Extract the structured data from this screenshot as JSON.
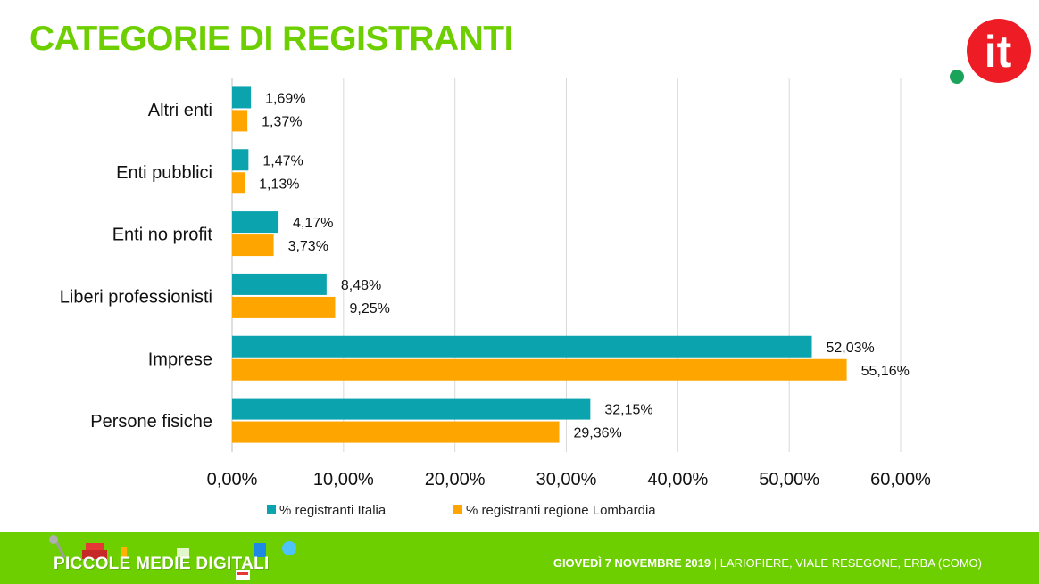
{
  "slide": {
    "title": "CATEGORIE DI REGISTRANTI",
    "logo_text": "it",
    "footer_brand": "PICCOLE MEDIE DIGITALI",
    "footer_date": "GIOVEDÌ 7 NOVEMBRE 2019",
    "footer_venue": " | LARIOFIERE, VIALE RESEGONE, ERBA (COMO)"
  },
  "colors": {
    "title": "#6dcf00",
    "footer_bg": "#6dcf00",
    "series_italia": "#0aa3ae",
    "series_lombardia": "#ffa500",
    "logo_red": "#ee1c24",
    "logo_dot": "#1aa35a",
    "grid": "#d9d9d9"
  },
  "chart_data": {
    "type": "bar",
    "orientation": "horizontal",
    "categories": [
      "Altri enti",
      "Enti pubblici",
      "Enti no profit",
      "Liberi professionisti",
      "Imprese",
      "Persone fisiche"
    ],
    "series": [
      {
        "name": "% registranti Italia",
        "values": [
          1.69,
          1.47,
          4.17,
          8.48,
          52.03,
          32.15
        ],
        "labels": [
          "1,69%",
          "1,47%",
          "4,17%",
          "8,48%",
          "52,03%",
          "32,15%"
        ]
      },
      {
        "name": "% registranti regione Lombardia",
        "values": [
          1.37,
          1.13,
          3.73,
          9.25,
          55.16,
          29.36
        ],
        "labels": [
          "1,37%",
          "1,13%",
          "3,73%",
          "9,25%",
          "55,16%",
          "29,36%"
        ]
      }
    ],
    "x_ticks": [
      {
        "value": 0,
        "label": "0,00%"
      },
      {
        "value": 10,
        "label": "10,00%"
      },
      {
        "value": 20,
        "label": "20,00%"
      },
      {
        "value": 30,
        "label": "30,00%"
      },
      {
        "value": 40,
        "label": "40,00%"
      },
      {
        "value": 50,
        "label": "50,00%"
      },
      {
        "value": 60,
        "label": "60,00%"
      }
    ],
    "xlim": [
      0,
      60
    ],
    "grid": "vertical",
    "legend_position": "bottom"
  }
}
